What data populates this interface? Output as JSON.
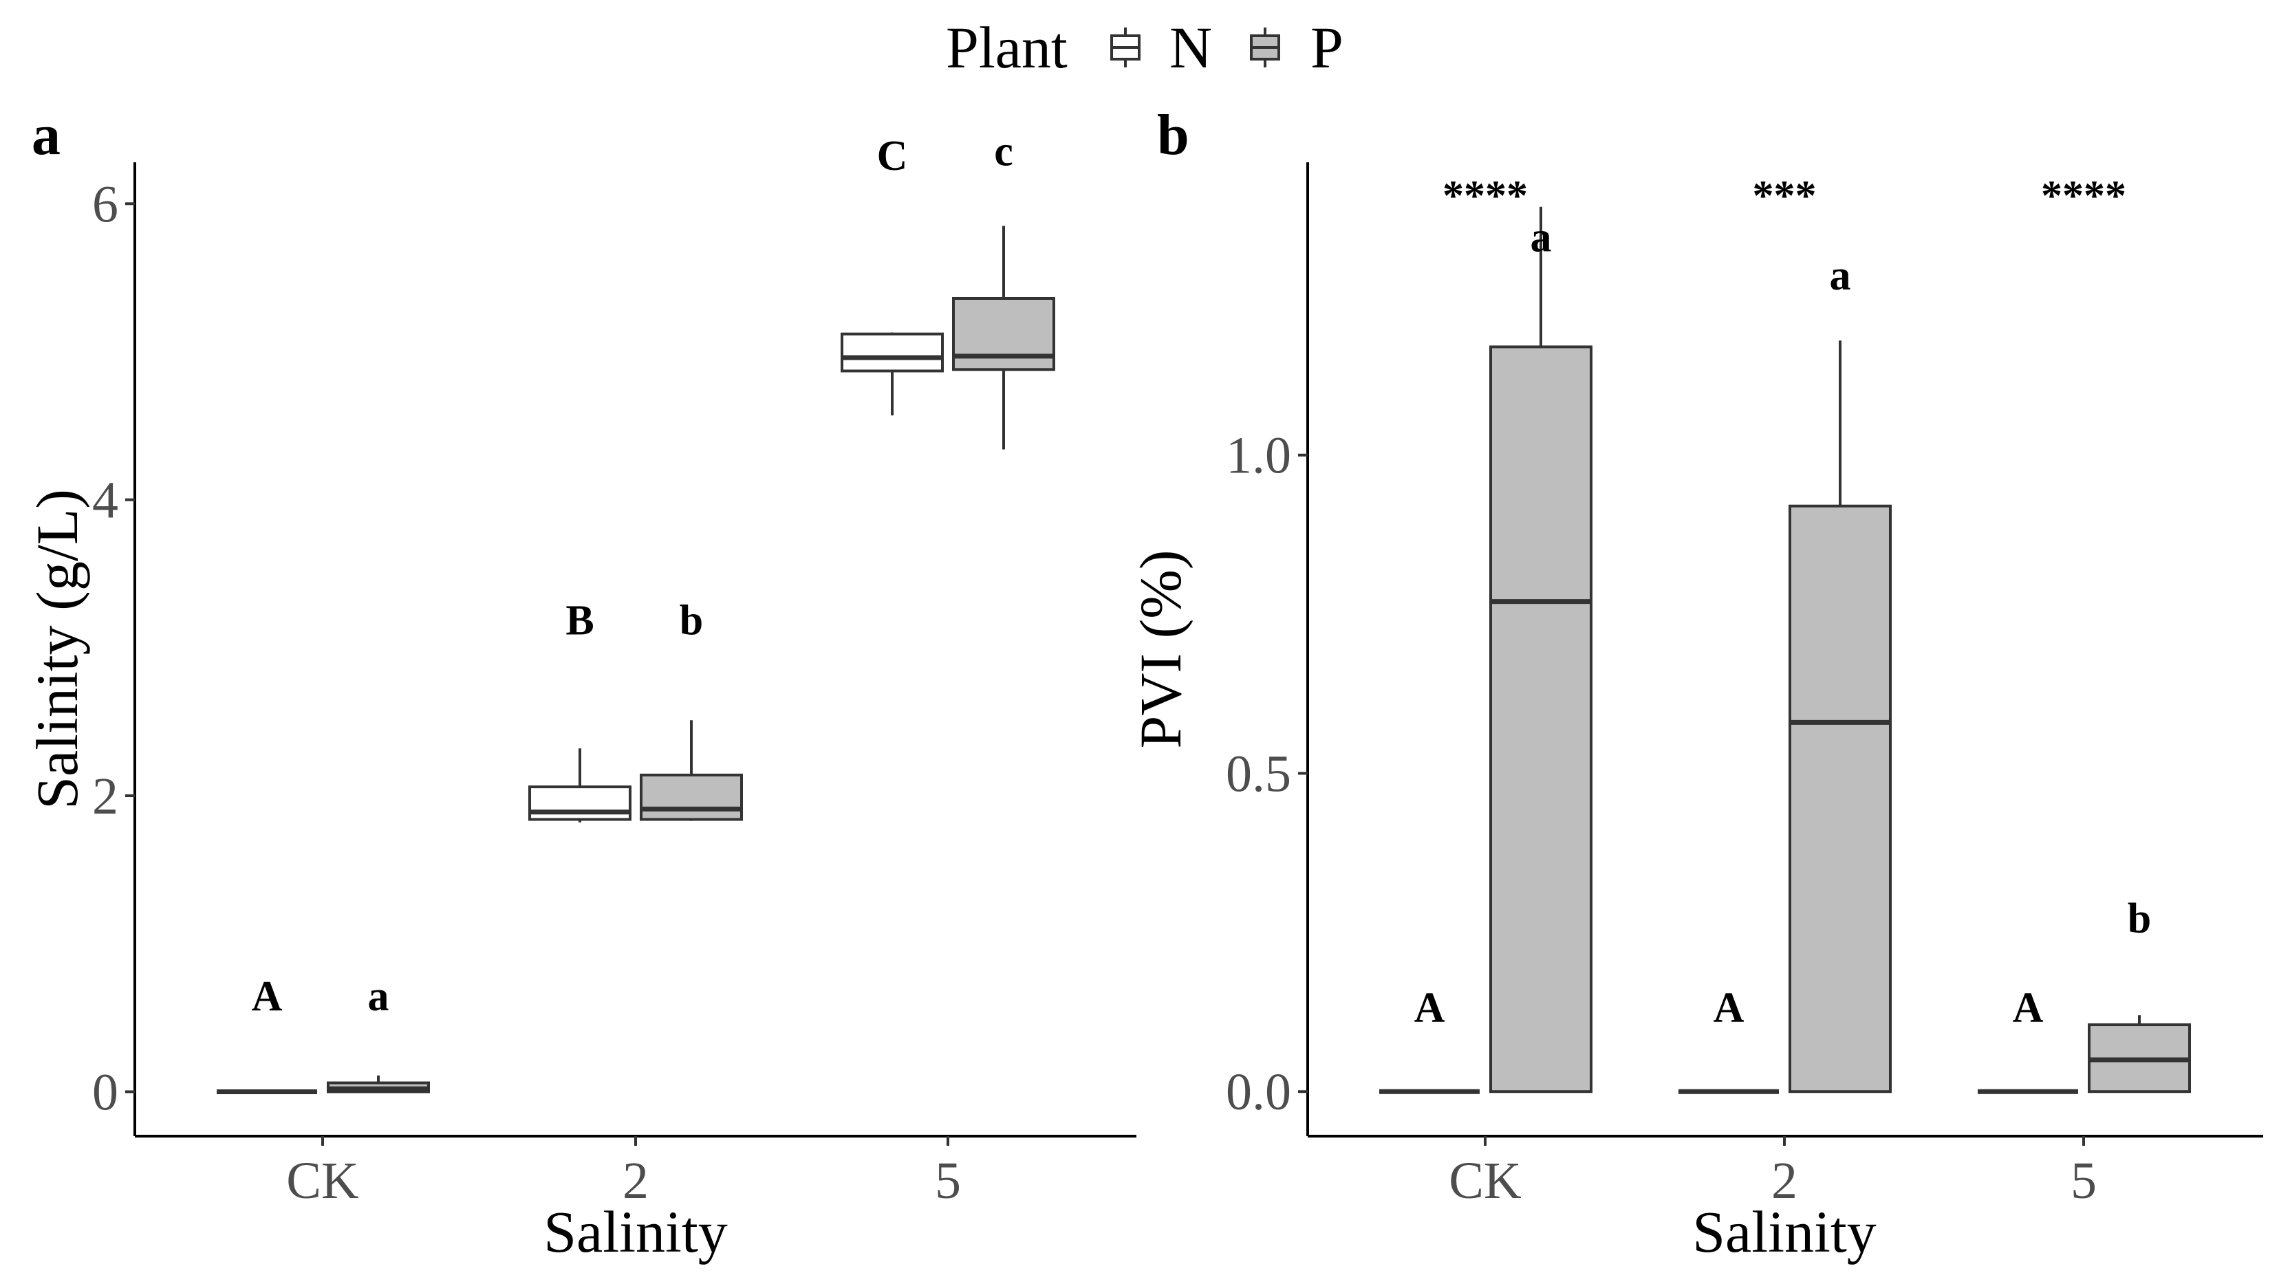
{
  "legend": {
    "title": "Plant",
    "entries": [
      {
        "key": "N",
        "label": "N",
        "fill": "#ffffff"
      },
      {
        "key": "P",
        "label": "P",
        "fill": "#bebebe"
      }
    ]
  },
  "colors": {
    "N": "#ffffff",
    "P": "#bebebe",
    "stroke": "#333333",
    "axis": "#000000",
    "tick_text": "#4d4d4d"
  },
  "chart_data": [
    {
      "panel": "a",
      "type": "box",
      "xlabel": "Salinity",
      "ylabel": "Salinity (g/L)",
      "categories": [
        "CK",
        "2",
        "5"
      ],
      "ylim": [
        -0.3,
        6.28
      ],
      "yticks": [
        0,
        2,
        4,
        6
      ],
      "ytick_labels": [
        "0",
        "2",
        "4",
        "6"
      ],
      "series": [
        {
          "name": "N",
          "boxes": [
            {
              "min": 0,
              "q1": 0,
              "median": 0,
              "q3": 0,
              "max": 0
            },
            {
              "min": 1.82,
              "q1": 1.84,
              "median": 1.89,
              "q3": 2.06,
              "max": 2.32
            },
            {
              "min": 4.57,
              "q1": 4.87,
              "median": 4.96,
              "q3": 5.12,
              "max": 5.13
            }
          ]
        },
        {
          "name": "P",
          "boxes": [
            {
              "min": 0,
              "q1": 0,
              "median": 0.02,
              "q3": 0.06,
              "max": 0.11
            },
            {
              "min": 1.83,
              "q1": 1.84,
              "median": 1.91,
              "q3": 2.14,
              "max": 2.51
            },
            {
              "min": 4.34,
              "q1": 4.88,
              "median": 4.97,
              "q3": 5.36,
              "max": 5.85
            }
          ]
        }
      ],
      "letters": [
        {
          "series": "N",
          "category": "CK",
          "label": "A",
          "y": 0.55
        },
        {
          "series": "P",
          "category": "CK",
          "label": "a",
          "y": 0.55
        },
        {
          "series": "N",
          "category": "2",
          "label": "B",
          "y": 3.09
        },
        {
          "series": "P",
          "category": "2",
          "label": "b",
          "y": 3.09
        },
        {
          "series": "N",
          "category": "5",
          "label": "C",
          "y": 6.23
        },
        {
          "series": "P",
          "category": "5",
          "label": "c",
          "y": 6.26
        }
      ],
      "stars": []
    },
    {
      "panel": "b",
      "type": "box",
      "xlabel": "Salinity",
      "ylabel": "PVI (%)",
      "categories": [
        "CK",
        "2",
        "5"
      ],
      "ylim": [
        -0.07,
        1.46
      ],
      "yticks": [
        0,
        0.5,
        1.0
      ],
      "ytick_labels": [
        "0.0",
        "0.5",
        "1.0"
      ],
      "series": [
        {
          "name": "N",
          "boxes": [
            {
              "min": 0,
              "q1": 0,
              "median": 0,
              "q3": 0,
              "max": 0
            },
            {
              "min": 0,
              "q1": 0,
              "median": 0,
              "q3": 0,
              "max": 0
            },
            {
              "min": 0,
              "q1": 0,
              "median": 0,
              "q3": 0,
              "max": 0
            }
          ]
        },
        {
          "name": "P",
          "boxes": [
            {
              "min": 0,
              "q1": 0,
              "median": 0.77,
              "q3": 1.17,
              "max": 1.39
            },
            {
              "min": 0,
              "q1": 0,
              "median": 0.58,
              "q3": 0.92,
              "max": 1.18
            },
            {
              "min": 0,
              "q1": 0,
              "median": 0.05,
              "q3": 0.105,
              "max": 0.12
            }
          ]
        }
      ],
      "letters": [
        {
          "series": "N",
          "category": "CK",
          "label": "A",
          "y": 0.11
        },
        {
          "series": "P",
          "category": "CK",
          "label": "a",
          "y": 1.32
        },
        {
          "series": "N",
          "category": "2",
          "label": "A",
          "y": 0.11
        },
        {
          "series": "P",
          "category": "2",
          "label": "a",
          "y": 1.26
        },
        {
          "series": "N",
          "category": "5",
          "label": "A",
          "y": 0.11
        },
        {
          "series": "P",
          "category": "5",
          "label": "b",
          "y": 0.25
        }
      ],
      "stars": [
        {
          "category": "CK",
          "label": "****",
          "y": 1.42
        },
        {
          "category": "2",
          "label": "***",
          "y": 1.42
        },
        {
          "category": "5",
          "label": "****",
          "y": 1.42
        }
      ]
    }
  ]
}
